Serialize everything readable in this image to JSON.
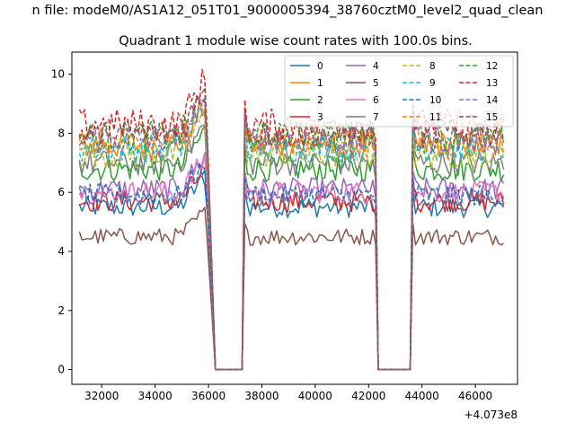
{
  "figure": {
    "suptitle": "n file: modeM0/AS1A12_051T01_9000005394_38760cztM0_level2_quad_clean"
  },
  "chart_data": {
    "type": "line",
    "title": "Quadrant 1 module wise count rates with 100.0s bins.",
    "xlabel": "",
    "ylabel": "",
    "x_offset_label": "+4.073e8",
    "xlim": [
      30880,
      47580
    ],
    "ylim": [
      -0.5,
      10.75
    ],
    "x_ticks": [
      32000,
      34000,
      36000,
      38000,
      40000,
      42000,
      44000,
      46000
    ],
    "x_tick_labels": [
      "32000",
      "34000",
      "36000",
      "38000",
      "40000",
      "42000",
      "44000",
      "46000"
    ],
    "y_ticks": [
      0,
      2,
      4,
      6,
      8,
      10
    ],
    "y_tick_labels": [
      "0",
      "2",
      "4",
      "6",
      "8",
      "10"
    ],
    "grid": false,
    "legend_placement": "top-right",
    "legend_columns": 4,
    "bin_seconds": 100,
    "segments": [
      {
        "start": 31160,
        "end": 35860
      },
      {
        "start": 37460,
        "end": 42160
      },
      {
        "start": 43760,
        "end": 47060
      }
    ],
    "gaps": [
      {
        "drop_start": 35960,
        "zero_start": 36260,
        "zero_end": 37260,
        "rise_end": 37360
      },
      {
        "drop_start": 42260,
        "zero_start": 42360,
        "zero_end": 43560,
        "rise_end": 43660
      }
    ],
    "series": [
      {
        "name": "0",
        "color": "#1f77b4",
        "dash": "solid",
        "level": 5.5
      },
      {
        "name": "1",
        "color": "#ff7f0e",
        "dash": "solid",
        "level": 7.6
      },
      {
        "name": "2",
        "color": "#2ca02c",
        "dash": "solid",
        "level": 6.8
      },
      {
        "name": "3",
        "color": "#d62728",
        "dash": "solid",
        "level": 5.7
      },
      {
        "name": "4",
        "color": "#9467bd",
        "dash": "solid",
        "level": 6.1
      },
      {
        "name": "5",
        "color": "#8c564b",
        "dash": "solid",
        "level": 4.5
      },
      {
        "name": "6",
        "color": "#e377c2",
        "dash": "solid",
        "level": 6.0
      },
      {
        "name": "7",
        "color": "#7f7f7f",
        "dash": "solid",
        "level": 7.0
      },
      {
        "name": "8",
        "color": "#bcbd22",
        "dash": "dashed",
        "level": 7.3
      },
      {
        "name": "9",
        "color": "#17becf",
        "dash": "dashed",
        "level": 7.5
      },
      {
        "name": "10",
        "color": "#1f77b4",
        "dash": "dashed",
        "level": 5.9
      },
      {
        "name": "11",
        "color": "#ff7f0e",
        "dash": "dashed",
        "level": 7.7
      },
      {
        "name": "12",
        "color": "#2ca02c",
        "dash": "dashed",
        "level": 7.9
      },
      {
        "name": "13",
        "color": "#d62728",
        "dash": "dashed",
        "level": 8.3
      },
      {
        "name": "14",
        "color": "#9467bd",
        "dash": "dashed",
        "level": 7.8
      },
      {
        "name": "15",
        "color": "#8c564b",
        "dash": "dashed",
        "level": 8.0
      }
    ]
  }
}
